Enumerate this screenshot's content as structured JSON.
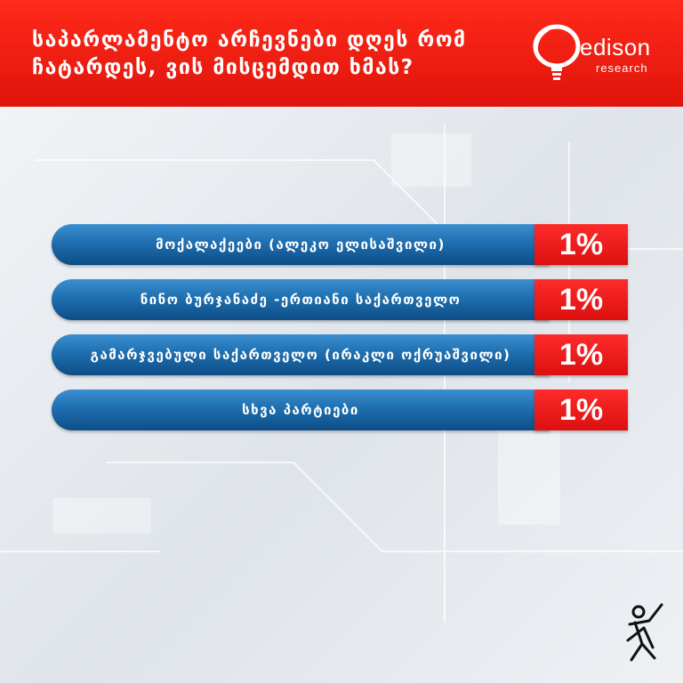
{
  "header": {
    "title": "საპარლამენტო არჩევნები დღეს რომ ჩატარდეს, ვის მისცემდით ხმას?"
  },
  "logo": {
    "name": "edison",
    "sub": "research"
  },
  "colors": {
    "header_red": "#e0140b",
    "bar_blue": "#1f6fb0",
    "value_red": "#dc1010"
  },
  "chart_data": {
    "type": "bar",
    "orientation": "horizontal",
    "categories": [
      "მოქალაქეები (ალეკო ელისაშვილი)",
      "ნინო ბურჯანაძე -ერთიანი საქართველო",
      "გამარჯვებული საქართველო (ირაკლი ოქრუაშვილი)",
      "სხვა პარტიები"
    ],
    "values": [
      1,
      1,
      1,
      1
    ],
    "value_labels": [
      "1%",
      "1%",
      "1%",
      "1%"
    ]
  }
}
